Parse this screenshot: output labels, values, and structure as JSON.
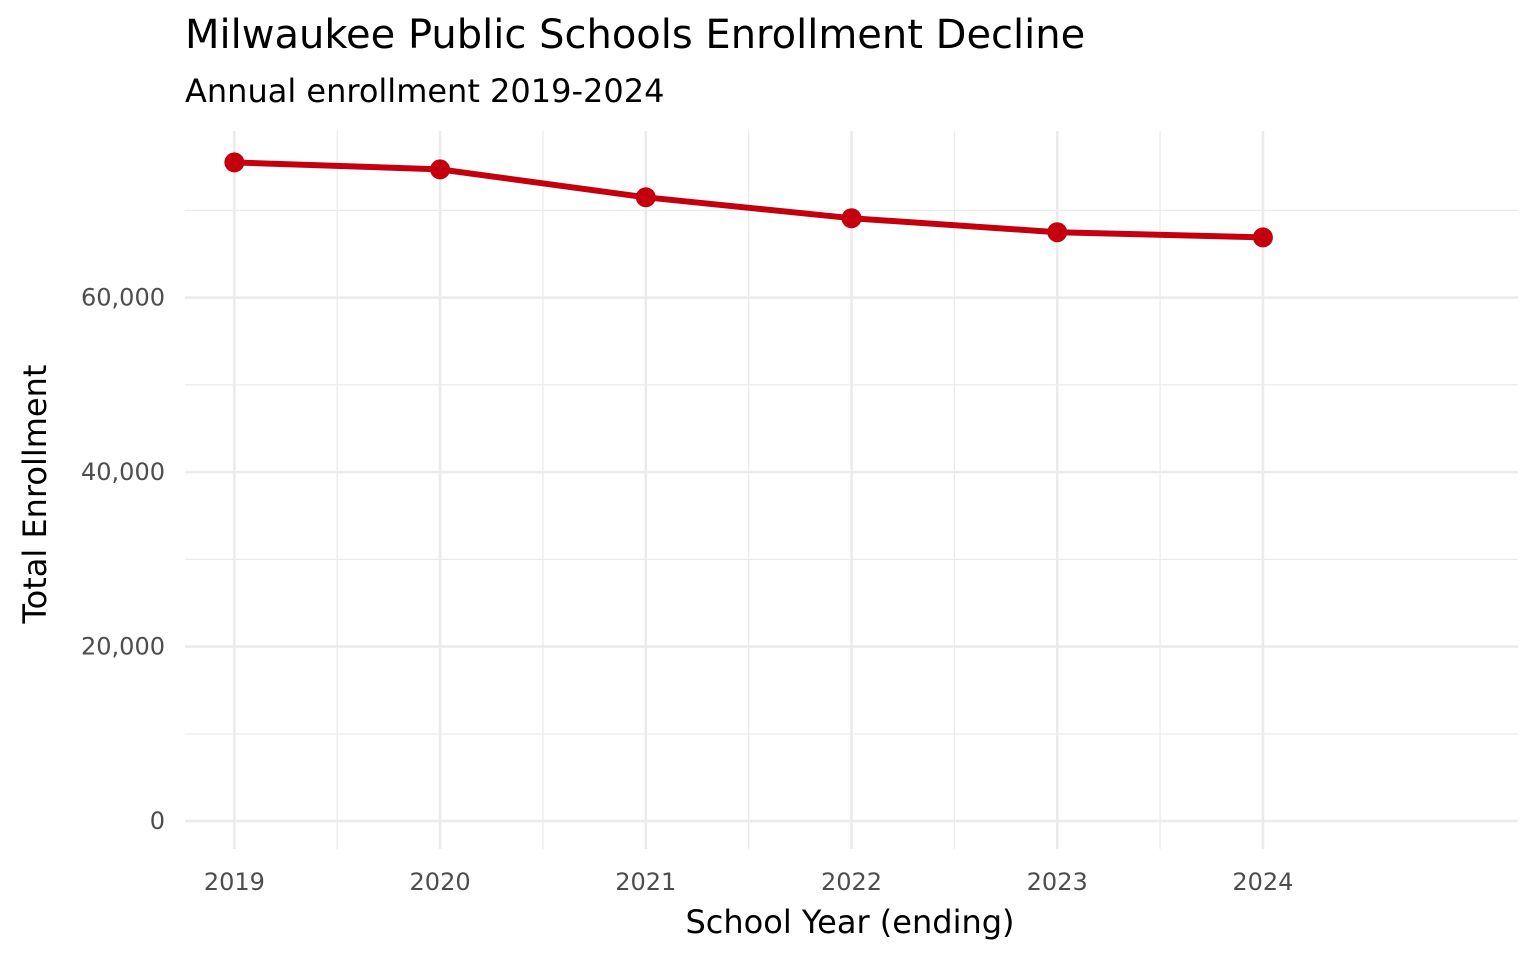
{
  "chart_data": {
    "type": "line",
    "title": "Milwaukee Public Schools Enrollment Decline",
    "subtitle": "Annual enrollment 2019-2024",
    "xlabel": "School Year (ending)",
    "ylabel": "Total Enrollment",
    "x": [
      2019,
      2020,
      2021,
      2022,
      2023,
      2024
    ],
    "x_tick_labels": [
      "2019",
      "2020",
      "2021",
      "2022",
      "2023",
      "2024"
    ],
    "y": [
      75500,
      74700,
      71500,
      69100,
      67500,
      66900
    ],
    "y_ticks": [
      0,
      20000,
      40000,
      60000
    ],
    "y_tick_labels": [
      "0",
      "20,000",
      "40,000",
      "60,000"
    ],
    "xlim": [
      2018.76,
      2025.24
    ],
    "ylim": [
      -3200,
      79100
    ],
    "grid": true,
    "legend": "none",
    "line_color": "#c4000f",
    "grid_color": "#ebebeb"
  }
}
